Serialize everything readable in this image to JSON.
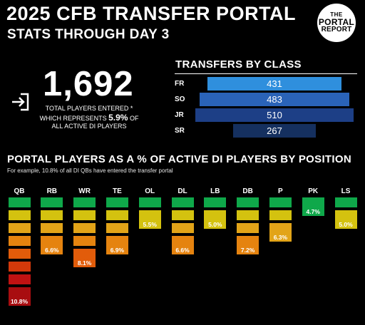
{
  "header": {
    "title": "2025 CFB TRANSFER PORTAL",
    "subtitle": "STATS THROUGH DAY 3"
  },
  "logo": {
    "line1": "THE",
    "line2": "PORTAL",
    "line3": "REPORT"
  },
  "summary": {
    "icon": "enter-arrow-icon",
    "total": "1,692",
    "line1": "TOTAL PLAYERS ENTERED *",
    "line2_prefix": "WHICH REPRESENTS ",
    "line2_pct": "5.9%",
    "line2_suffix": " OF",
    "line3": "ALL ACTIVE DI PLAYERS"
  },
  "by_class": {
    "heading": "TRANSFERS BY CLASS",
    "rows": [
      {
        "label": "FR",
        "value": 431,
        "text": "431",
        "color": "#2f8fdd"
      },
      {
        "label": "SO",
        "value": 483,
        "text": "483",
        "color": "#2a63b8"
      },
      {
        "label": "JR",
        "value": 510,
        "text": "510",
        "color": "#1d3f86"
      },
      {
        "label": "SR",
        "value": 267,
        "text": "267",
        "color": "#15305f"
      }
    ]
  },
  "by_position": {
    "heading": "PORTAL PLAYERS AS A % OF ACTIVE DI PLAYERS BY POSITION",
    "note": "For example, 10.8% of all DI QBs have entered the transfer portal",
    "scale_colors": [
      "#0fa84a",
      "#d4c20f",
      "#e2a418",
      "#e5830f",
      "#e25c0a",
      "#d4390a",
      "#c01212",
      "#a80d10"
    ],
    "positions": [
      {
        "label": "QB",
        "value": 10.8,
        "text": "10.8%"
      },
      {
        "label": "RB",
        "value": 6.6,
        "text": "6.6%"
      },
      {
        "label": "WR",
        "value": 8.1,
        "text": "8.1%"
      },
      {
        "label": "TE",
        "value": 6.9,
        "text": "6.9%"
      },
      {
        "label": "OL",
        "value": 5.5,
        "text": "5.5%"
      },
      {
        "label": "DL",
        "value": 6.6,
        "text": "6.6%"
      },
      {
        "label": "LB",
        "value": 5.0,
        "text": "5.0%"
      },
      {
        "label": "DB",
        "value": 7.2,
        "text": "7.2%"
      },
      {
        "label": "P",
        "value": 6.3,
        "text": "6.3%"
      },
      {
        "label": "PK",
        "value": 4.7,
        "text": "4.7%"
      },
      {
        "label": "LS",
        "value": 5.0,
        "text": "5.0%"
      }
    ]
  }
}
